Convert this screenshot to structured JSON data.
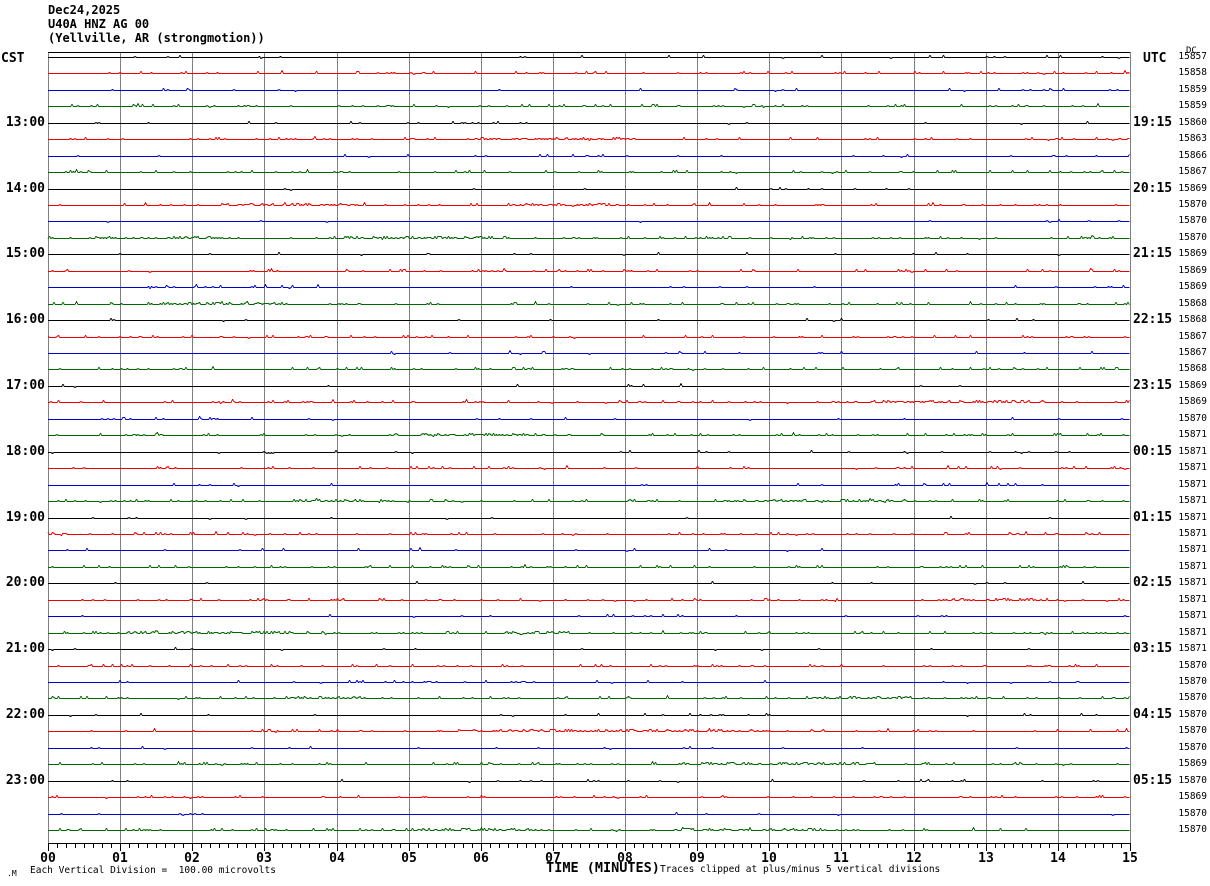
{
  "title": {
    "date": "Dec24,2025",
    "station": "U40A HNZ AG 00",
    "location": "(Yellville, AR (strongmotion))"
  },
  "axes": {
    "left_tz_label": "CST",
    "right_tz_label": "UTC",
    "dc_header": "DC",
    "x_axis_title": "TIME (MINUTES)",
    "x_ticks": [
      "00",
      "01",
      "02",
      "03",
      "04",
      "05",
      "06",
      "07",
      "08",
      "09",
      "10",
      "11",
      "12",
      "13",
      "14",
      "15"
    ]
  },
  "footer": {
    "scale_note": "Each Vertical Division =  100.00 microvolts",
    "clip_note": "Traces clipped at plus/minus 5 vertical divisions",
    "watermark": ".M"
  },
  "colors": {
    "black_trace": "#000000",
    "red_trace": "#ee0000",
    "blue_trace": "#0000cc",
    "green_trace": "#006600",
    "grid": "#7f7f7f",
    "border": "#000000"
  },
  "chart_data": {
    "type": "line",
    "subtype": "helicorder",
    "x_range_minutes": [
      0,
      15
    ],
    "minutes_per_row": 15,
    "note": "48 rows of near-flat traces with small upward noise blips; traces clipped at plus/minus 5 vertical divisions; each vertical division = 100.00 microvolts",
    "color_cycle": [
      "black",
      "red",
      "blue",
      "green"
    ],
    "rows": [
      {
        "dc": 15857,
        "color": "black"
      },
      {
        "dc": 15858,
        "color": "red"
      },
      {
        "dc": 15859,
        "color": "blue"
      },
      {
        "dc": 15859,
        "color": "green"
      },
      {
        "dc": 15860,
        "color": "black",
        "cst": "13:00",
        "utc": "19:15"
      },
      {
        "dc": 15863,
        "color": "red"
      },
      {
        "dc": 15866,
        "color": "blue"
      },
      {
        "dc": 15867,
        "color": "green"
      },
      {
        "dc": 15869,
        "color": "black",
        "cst": "14:00",
        "utc": "20:15"
      },
      {
        "dc": 15870,
        "color": "red"
      },
      {
        "dc": 15870,
        "color": "blue"
      },
      {
        "dc": 15870,
        "color": "green"
      },
      {
        "dc": 15869,
        "color": "black",
        "cst": "15:00",
        "utc": "21:15"
      },
      {
        "dc": 15869,
        "color": "red"
      },
      {
        "dc": 15869,
        "color": "blue"
      },
      {
        "dc": 15868,
        "color": "green"
      },
      {
        "dc": 15868,
        "color": "black",
        "cst": "16:00",
        "utc": "22:15"
      },
      {
        "dc": 15867,
        "color": "red"
      },
      {
        "dc": 15867,
        "color": "blue"
      },
      {
        "dc": 15868,
        "color": "green"
      },
      {
        "dc": 15869,
        "color": "black",
        "cst": "17:00",
        "utc": "23:15"
      },
      {
        "dc": 15869,
        "color": "red"
      },
      {
        "dc": 15870,
        "color": "blue"
      },
      {
        "dc": 15871,
        "color": "green"
      },
      {
        "dc": 15871,
        "color": "black",
        "cst": "18:00",
        "utc": "00:15"
      },
      {
        "dc": 15871,
        "color": "red"
      },
      {
        "dc": 15871,
        "color": "blue"
      },
      {
        "dc": 15871,
        "color": "green"
      },
      {
        "dc": 15871,
        "color": "black",
        "cst": "19:00",
        "utc": "01:15"
      },
      {
        "dc": 15871,
        "color": "red"
      },
      {
        "dc": 15871,
        "color": "blue"
      },
      {
        "dc": 15871,
        "color": "green"
      },
      {
        "dc": 15871,
        "color": "black",
        "cst": "20:00",
        "utc": "02:15"
      },
      {
        "dc": 15871,
        "color": "red"
      },
      {
        "dc": 15871,
        "color": "blue"
      },
      {
        "dc": 15871,
        "color": "green"
      },
      {
        "dc": 15871,
        "color": "black",
        "cst": "21:00",
        "utc": "03:15"
      },
      {
        "dc": 15870,
        "color": "red"
      },
      {
        "dc": 15870,
        "color": "blue"
      },
      {
        "dc": 15870,
        "color": "green"
      },
      {
        "dc": 15870,
        "color": "black",
        "cst": "22:00",
        "utc": "04:15"
      },
      {
        "dc": 15870,
        "color": "red"
      },
      {
        "dc": 15870,
        "color": "blue"
      },
      {
        "dc": 15869,
        "color": "green"
      },
      {
        "dc": 15870,
        "color": "black",
        "cst": "23:00",
        "utc": "05:15"
      },
      {
        "dc": 15869,
        "color": "red"
      },
      {
        "dc": 15870,
        "color": "blue"
      },
      {
        "dc": 15870,
        "color": "green"
      }
    ]
  }
}
